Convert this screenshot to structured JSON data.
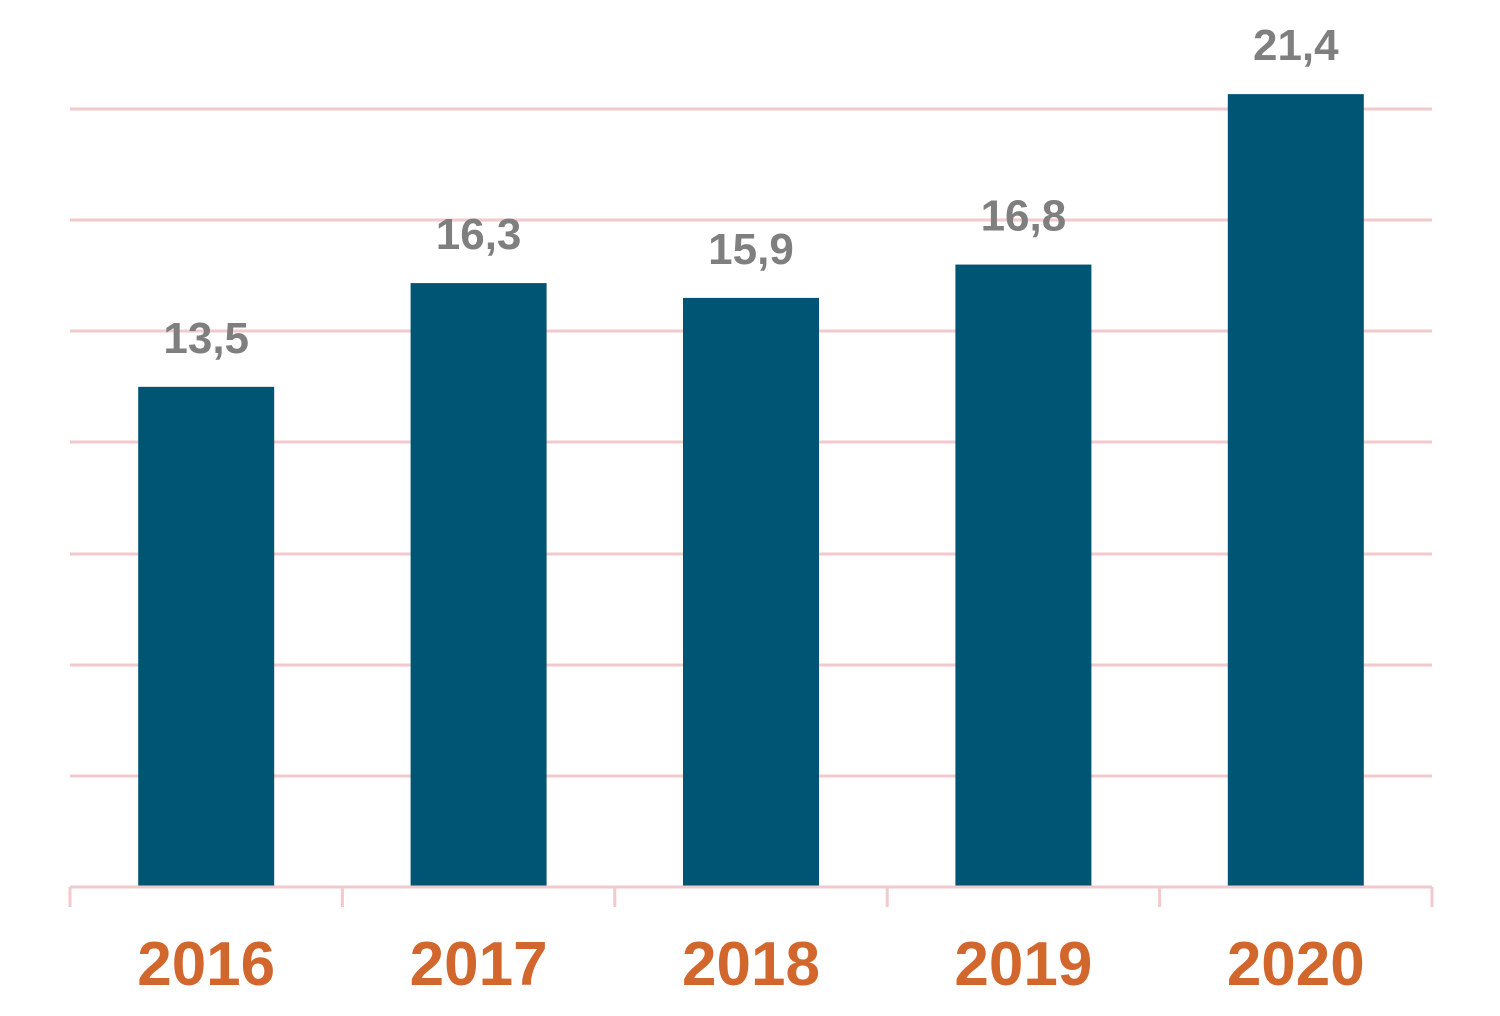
{
  "chart_data": {
    "type": "bar",
    "categories": [
      "2016",
      "2017",
      "2018",
      "2019",
      "2020"
    ],
    "values": [
      13.5,
      16.3,
      15.9,
      16.8,
      21.4
    ],
    "data_labels": [
      "13,5",
      "16,3",
      "15,9",
      "16,8",
      "21,4"
    ],
    "ylim": [
      0,
      24
    ],
    "grid": true,
    "y_axis_labels_visible": false,
    "colors": {
      "bar": "#005574",
      "gridline": "#f2c9cc",
      "data_label": "#7f7f7f",
      "category_label": "#d2672e"
    }
  }
}
